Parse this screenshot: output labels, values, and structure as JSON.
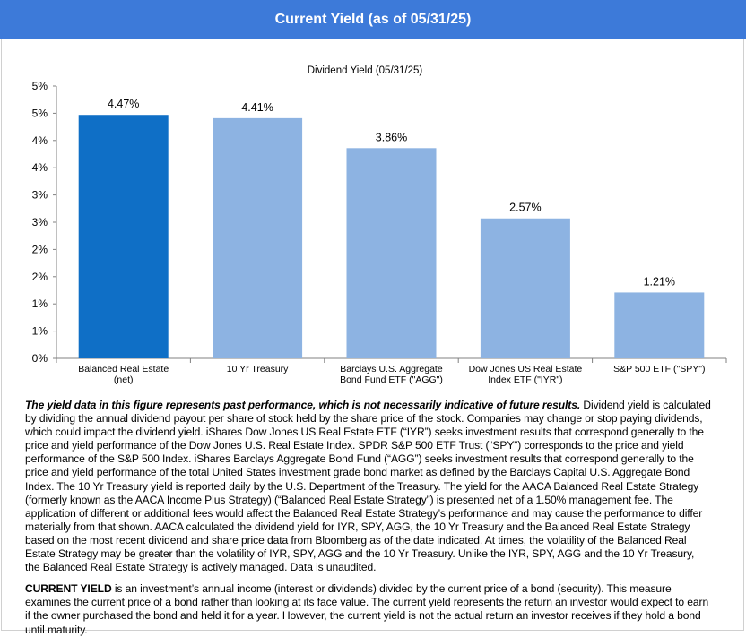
{
  "header": {
    "title": "Current Yield (as of 05/31/25)"
  },
  "chart_data": {
    "type": "bar",
    "title": "Dividend Yield (05/31/25)",
    "categories": [
      "Balanced Real Estate (net)",
      "10 Yr Treasury",
      "Barclays U.S. Aggregate Bond Fund ETF (\"AGG\")",
      "Dow Jones US Real Estate Index ETF (\"IYR\")",
      "S&P 500 ETF (\"SPY\")"
    ],
    "values": [
      4.47,
      4.41,
      3.86,
      2.57,
      1.21
    ],
    "data_labels": [
      "4.47%",
      "4.41%",
      "3.86%",
      "2.57%",
      "1.21%"
    ],
    "y_tick_labels": [
      "0%",
      "1%",
      "1%",
      "2%",
      "2%",
      "3%",
      "3%",
      "4%",
      "4%",
      "5%",
      "5%"
    ],
    "ylim": [
      0,
      5
    ],
    "ylabel": "",
    "xlabel": "",
    "grid": false,
    "legend": "none",
    "colors": {
      "highlight": "#0f6fc6",
      "bar": "#8db3e2",
      "axis": "#808080"
    }
  },
  "notes": {
    "lead": "The yield data in this figure represents past performance, which is not necessarily indicative of future results.",
    "body": " Dividend yield is calculated by dividing the annual dividend payout per share of stock held by the share price of the stock. Companies may change or stop paying dividends, which could impact the dividend yield. iShares Dow Jones US Real Estate ETF (“IYR”) seeks investment results that correspond generally to the price and yield performance of the Dow Jones U.S. Real Estate Index. SPDR S&P 500 ETF Trust (“SPY”) corresponds to the price and yield performance of the S&P 500 Index. iShares Barclays Aggregate Bond Fund (“AGG”) seeks investment results that correspond generally to the price and yield performance of the total United States investment grade bond market as defined by the Barclays Capital U.S. Aggregate Bond Index. The 10 Yr Treasury yield is reported daily by the U.S. Department of the Treasury. The yield for the AACA Balanced Real Estate Strategy (formerly known as the AACA Income Plus Strategy) (“Balanced Real Estate Strategy”) is presented net of a 1.50% management fee. The application of different or additional fees would affect the Balanced Real Estate Strategy’s performance and may cause the performance to differ materially from that shown. AACA calculated the dividend yield for IYR, SPY, AGG, the 10 Yr Treasury and the Balanced Real Estate Strategy based on the most recent dividend and share price data from Bloomberg as of the date indicated. At times, the volatility of the Balanced Real Estate Strategy may be greater than the volatility of IYR, SPY, AGG and the 10 Yr Treasury. Unlike the IYR, SPY, AGG and the 10 Yr Treasury, the Balanced Real Estate Strategy is actively managed. Data is unaudited.",
    "term": "CURRENT YIELD",
    "definition": " is an investment’s annual income (interest or dividends) divided by the current price of a bond (security). This measure examines the current price of a bond rather than looking at its face value. The current yield represents the return an investor would expect to earn if the owner purchased the bond and held it for a year. However, the current yield is not the actual return an investor receives if they hold a bond until maturity."
  }
}
